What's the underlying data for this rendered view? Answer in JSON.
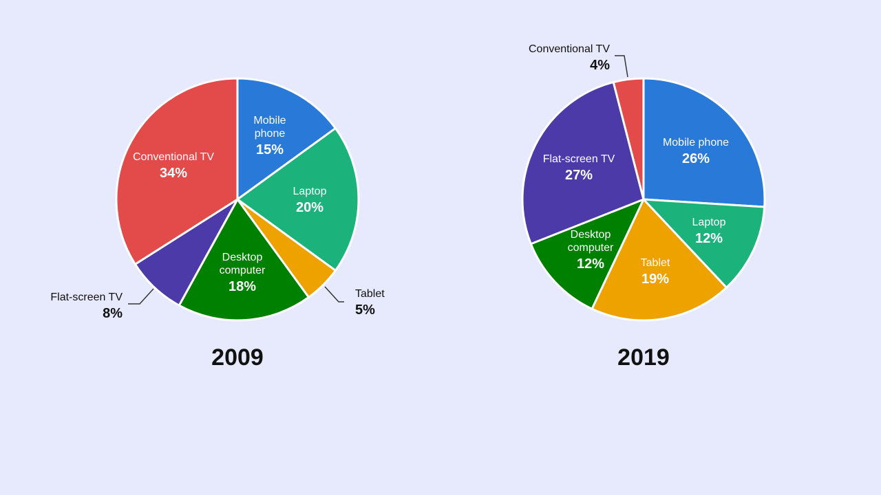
{
  "chart_data": [
    {
      "type": "pie",
      "title": "2009",
      "slices": [
        {
          "label": "Mobile phone",
          "label_lines": [
            "Mobile",
            "phone"
          ],
          "value": 15,
          "percent_label": "15%",
          "color": "#2979d9",
          "label_position": "inside"
        },
        {
          "label": "Laptop",
          "label_lines": [
            "Laptop"
          ],
          "value": 20,
          "percent_label": "20%",
          "color": "#1cb27b",
          "label_position": "inside"
        },
        {
          "label": "Tablet",
          "label_lines": [
            "Tablet"
          ],
          "value": 5,
          "percent_label": "5%",
          "color": "#eda200",
          "label_position": "outside"
        },
        {
          "label": "Desktop computer",
          "label_lines": [
            "Desktop",
            "computer"
          ],
          "value": 18,
          "percent_label": "18%",
          "color": "#008000",
          "label_position": "inside"
        },
        {
          "label": "Flat-screen TV",
          "label_lines": [
            "Flat-screen TV"
          ],
          "value": 8,
          "percent_label": "8%",
          "color": "#4b3aa8",
          "label_position": "outside"
        },
        {
          "label": "Conventional TV",
          "label_lines": [
            "Conventional TV"
          ],
          "value": 34,
          "percent_label": "34%",
          "color": "#e34b4b",
          "label_position": "inside"
        }
      ]
    },
    {
      "type": "pie",
      "title": "2019",
      "slices": [
        {
          "label": "Mobile phone",
          "label_lines": [
            "Mobile phone"
          ],
          "value": 26,
          "percent_label": "26%",
          "color": "#2979d9",
          "label_position": "inside"
        },
        {
          "label": "Laptop",
          "label_lines": [
            "Laptop"
          ],
          "value": 12,
          "percent_label": "12%",
          "color": "#1cb27b",
          "label_position": "inside"
        },
        {
          "label": "Tablet",
          "label_lines": [
            "Tablet"
          ],
          "value": 19,
          "percent_label": "19%",
          "color": "#eda200",
          "label_position": "inside"
        },
        {
          "label": "Desktop computer",
          "label_lines": [
            "Desktop",
            "computer"
          ],
          "value": 12,
          "percent_label": "12%",
          "color": "#008000",
          "label_position": "inside"
        },
        {
          "label": "Flat-screen TV",
          "label_lines": [
            "Flat-screen TV"
          ],
          "value": 27,
          "percent_label": "27%",
          "color": "#4b3aa8",
          "label_position": "inside"
        },
        {
          "label": "Conventional TV",
          "label_lines": [
            "Conventional TV"
          ],
          "value": 4,
          "percent_label": "4%",
          "color": "#e34b4b",
          "label_position": "outside"
        }
      ]
    }
  ],
  "colors": {
    "background": "#e6eafc",
    "inside_label": "#ffffff",
    "outside_label": "#111111"
  }
}
